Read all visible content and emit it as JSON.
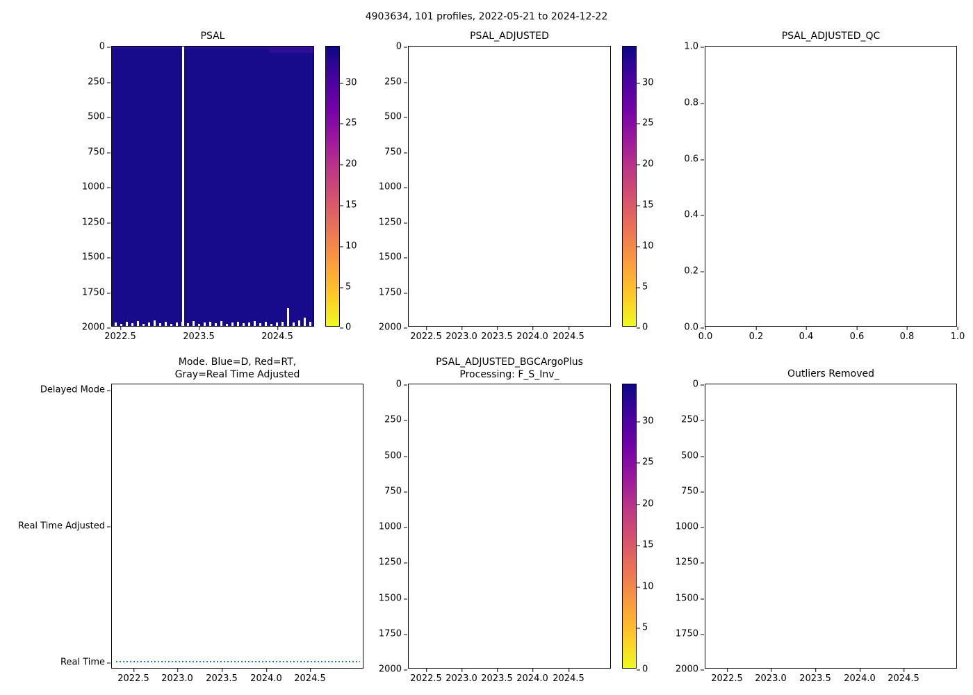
{
  "figure": {
    "title": "4903634, 101 profiles, 2022-05-21 to 2024-12-22"
  },
  "colors": {
    "heatmap_navy": "#170b8c",
    "colorbar_top": "#0d0887",
    "colorbar_bottom": "#f0f921",
    "mode_line_blue": "#1f77b4",
    "axis": "#000000",
    "background": "#ffffff"
  },
  "chart_data": [
    {
      "id": "psal",
      "type": "heatmap",
      "title": "PSAL",
      "xlim": [
        2022.39,
        2024.98
      ],
      "ylim": [
        2000,
        0
      ],
      "xticks": [
        "2022.5",
        "2023.5",
        "2024.5"
      ],
      "yticks": [
        "0",
        "250",
        "500",
        "750",
        "1000",
        "1250",
        "1500",
        "1750",
        "2000"
      ],
      "colorbar": {
        "vmin": 0,
        "vmax": 34.5,
        "ticks": [
          "0",
          "5",
          "10",
          "15",
          "20",
          "25",
          "30"
        ],
        "colormap": "plasma reversed (high=dark navy, low=yellow)"
      },
      "data_summary": {
        "fill_value_psu": 34.5,
        "n_profiles": 101,
        "description": "All profiles uniformly ~34-35 PSU (dark navy). One missing profile shown as a white vertical gap near 2023.3. Profile bottoms jagged near 2000 dbar with white notches; one deeper white spike near 2024.6.",
        "missing_profile_x": 2023.3,
        "max_depth_dbar": 2000
      }
    },
    {
      "id": "psal_adjusted",
      "type": "heatmap",
      "title": "PSAL_ADJUSTED",
      "empty": true,
      "xticks": [
        "2022.5",
        "2023.0",
        "2023.5",
        "2024.0",
        "2024.5"
      ],
      "yticks": [
        "0",
        "250",
        "500",
        "750",
        "1000",
        "1250",
        "1500",
        "1750",
        "2000"
      ],
      "colorbar": {
        "vmin": 0,
        "vmax": 34.5,
        "ticks": [
          "0",
          "5",
          "10",
          "15",
          "20",
          "25",
          "30"
        ],
        "colormap": "plasma reversed"
      },
      "data_summary": {
        "description": "No adjusted data plotted (axes empty)."
      }
    },
    {
      "id": "psal_adjusted_qc",
      "type": "scatter",
      "title": "PSAL_ADJUSTED_QC",
      "empty": true,
      "xticks": [
        "0.0",
        "0.2",
        "0.4",
        "0.6",
        "0.8",
        "1.0"
      ],
      "yticks": [
        "1.0",
        "0.8",
        "0.6",
        "0.4",
        "0.2",
        "0.0"
      ],
      "data_summary": {
        "description": "No QC flags plotted (default 0-1 axes, empty)."
      }
    },
    {
      "id": "mode",
      "type": "line",
      "title_line1": "Mode. Blue=D, Red=RT,",
      "title_line2": "Gray=Real Time Adjusted",
      "ycategories": [
        "Delayed Mode",
        "Real Time Adjusted",
        "Real Time"
      ],
      "xticks": [
        "2022.5",
        "2023.0",
        "2023.5",
        "2024.0",
        "2024.5"
      ],
      "series": [
        {
          "name": "data mode",
          "color": "#1f77b4",
          "style": "dotted",
          "value": "Real Time",
          "x_start": 2022.39,
          "x_end": 2024.97,
          "description": "All 101 profiles are Real Time mode (dotted blue line along the bottom category)."
        }
      ]
    },
    {
      "id": "psal_adjusted_bgcargoplus",
      "type": "heatmap",
      "title_line1": "PSAL_ADJUSTED_BGCArgoPlus",
      "title_line2": "Processing: F_S_Inv_",
      "empty": true,
      "xticks": [
        "2022.5",
        "2023.0",
        "2023.5",
        "2024.0",
        "2024.5"
      ],
      "yticks": [
        "0",
        "250",
        "500",
        "750",
        "1000",
        "1250",
        "1500",
        "1750",
        "2000"
      ],
      "colorbar": {
        "vmin": 0,
        "vmax": 34.5,
        "ticks": [
          "0",
          "5",
          "10",
          "15",
          "20",
          "25",
          "30"
        ],
        "colormap": "plasma reversed"
      },
      "data_summary": {
        "description": "No BGC-adjusted data plotted (axes empty)."
      }
    },
    {
      "id": "outliers_removed",
      "type": "scatter",
      "title": "Outliers Removed",
      "empty": true,
      "xticks": [
        "2022.5",
        "2023.0",
        "2023.5",
        "2024.0",
        "2024.5"
      ],
      "yticks": [
        "0",
        "250",
        "500",
        "750",
        "1000",
        "1250",
        "1500",
        "1750",
        "2000"
      ],
      "data_summary": {
        "description": "No outliers plotted (axes empty)."
      }
    }
  ]
}
